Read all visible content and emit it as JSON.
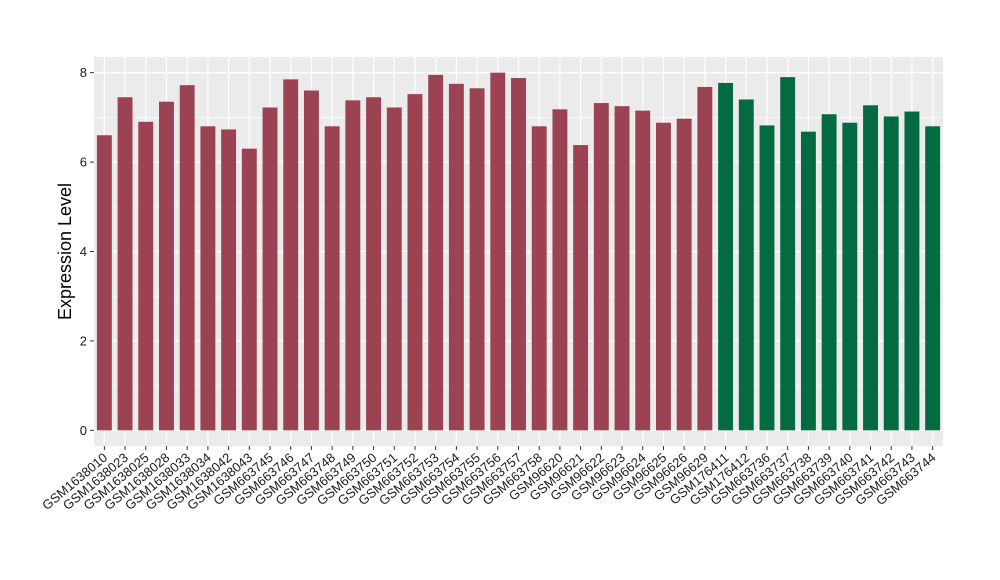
{
  "chart_data": {
    "type": "bar",
    "title": "",
    "xlabel": "",
    "ylabel": "Expression Level",
    "ylim": [
      -0.35,
      8.35
    ],
    "yticks": [
      0,
      2,
      4,
      6,
      8
    ],
    "grid": true,
    "legend": "none",
    "colors": {
      "panel_background": "#ebebeb",
      "grid_major": "#ffffff",
      "group_a": "#9b4352",
      "group_b": "#036a42"
    },
    "categories": [
      "GSM1638010",
      "GSM1638023",
      "GSM1638025",
      "GSM1638028",
      "GSM1638033",
      "GSM1638034",
      "GSM1638042",
      "GSM1638043",
      "GSM663745",
      "GSM663746",
      "GSM663747",
      "GSM663748",
      "GSM663749",
      "GSM663750",
      "GSM663751",
      "GSM663752",
      "GSM663753",
      "GSM663754",
      "GSM663755",
      "GSM663756",
      "GSM663757",
      "GSM663758",
      "GSM96620",
      "GSM96621",
      "GSM96622",
      "GSM96623",
      "GSM96624",
      "GSM96625",
      "GSM96626",
      "GSM96629",
      "GSM176411",
      "GSM176412",
      "GSM663736",
      "GSM663737",
      "GSM663738",
      "GSM663739",
      "GSM663740",
      "GSM663741",
      "GSM663742",
      "GSM663743",
      "GSM663744"
    ],
    "values": [
      6.6,
      7.45,
      6.9,
      7.35,
      7.72,
      6.8,
      6.73,
      6.3,
      7.22,
      7.85,
      7.6,
      6.8,
      7.38,
      7.45,
      7.22,
      7.52,
      7.95,
      7.75,
      7.65,
      8.0,
      7.88,
      6.8,
      7.18,
      6.38,
      7.32,
      7.25,
      7.15,
      6.88,
      6.97,
      7.68,
      7.77,
      7.4,
      6.82,
      7.9,
      6.68,
      7.07,
      6.88,
      7.27,
      7.02,
      7.13,
      6.8
    ],
    "groups": [
      "a",
      "a",
      "a",
      "a",
      "a",
      "a",
      "a",
      "a",
      "a",
      "a",
      "a",
      "a",
      "a",
      "a",
      "a",
      "a",
      "a",
      "a",
      "a",
      "a",
      "a",
      "a",
      "a",
      "a",
      "a",
      "a",
      "a",
      "a",
      "a",
      "a",
      "b",
      "b",
      "b",
      "b",
      "b",
      "b",
      "b",
      "b",
      "b",
      "b",
      "b"
    ]
  }
}
